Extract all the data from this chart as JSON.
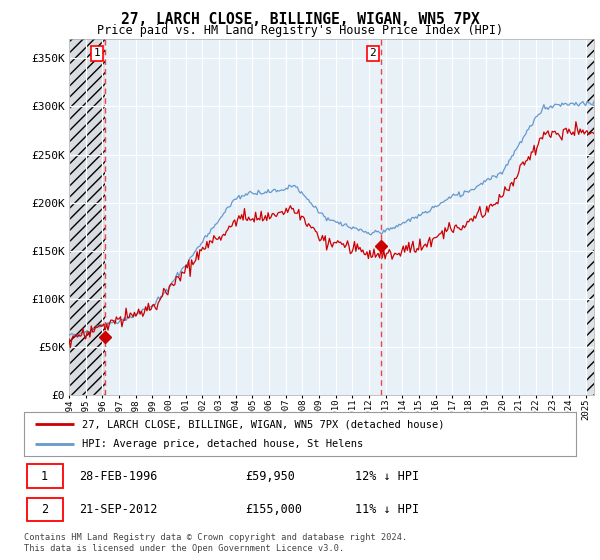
{
  "title1": "27, LARCH CLOSE, BILLINGE, WIGAN, WN5 7PX",
  "title2": "Price paid vs. HM Land Registry's House Price Index (HPI)",
  "ylim": [
    0,
    370000
  ],
  "yticks": [
    0,
    50000,
    100000,
    150000,
    200000,
    250000,
    300000,
    350000
  ],
  "ytick_labels": [
    "£0",
    "£50K",
    "£100K",
    "£150K",
    "£200K",
    "£250K",
    "£300K",
    "£350K"
  ],
  "sale1_date": 1996.16,
  "sale1_price": 59950,
  "sale2_date": 2012.72,
  "sale2_price": 155000,
  "marker_color": "#cc0000",
  "hpi_color": "#6699cc",
  "price_color": "#cc0000",
  "vline_color": "#ee4444",
  "background_color": "#e8f0f8",
  "legend_label1": "27, LARCH CLOSE, BILLINGE, WIGAN, WN5 7PX (detached house)",
  "legend_label2": "HPI: Average price, detached house, St Helens",
  "table_row1": [
    "1",
    "28-FEB-1996",
    "£59,950",
    "12% ↓ HPI"
  ],
  "table_row2": [
    "2",
    "21-SEP-2012",
    "£155,000",
    "11% ↓ HPI"
  ],
  "copyright_text": "Contains HM Land Registry data © Crown copyright and database right 2024.\nThis data is licensed under the Open Government Licence v3.0.",
  "xmin": 1994.0,
  "xmax": 2025.5
}
